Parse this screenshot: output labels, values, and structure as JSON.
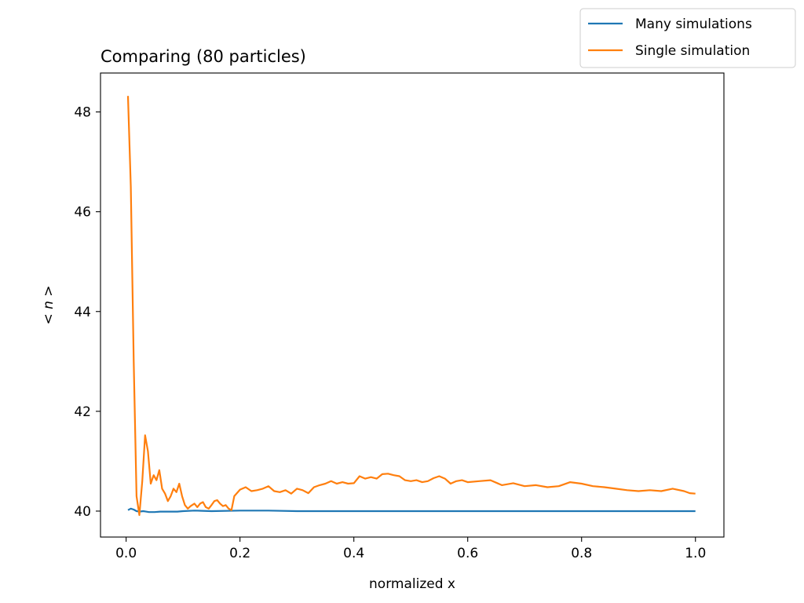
{
  "chart_data": {
    "type": "line",
    "title": "Comparing (80 particles)",
    "xlabel": "normalized x",
    "ylabel": "< n >",
    "xlim": [
      -0.045,
      1.05
    ],
    "ylim": [
      39.48,
      48.78
    ],
    "xticks": [
      0.0,
      0.2,
      0.4,
      0.6,
      0.8,
      1.0
    ],
    "xtick_labels": [
      "0.0",
      "0.2",
      "0.4",
      "0.6",
      "0.8",
      "1.0"
    ],
    "yticks": [
      40,
      42,
      44,
      46,
      48
    ],
    "ytick_labels": [
      "40",
      "42",
      "44",
      "46",
      "48"
    ],
    "grid": false,
    "legend_position": "top-right, outside axes",
    "series": [
      {
        "name": "Many simulations",
        "color": "#1f77b4",
        "points": [
          [
            0.0033,
            40.02
          ],
          [
            0.0083,
            40.05
          ],
          [
            0.0133,
            40.03
          ],
          [
            0.0183,
            40.0
          ],
          [
            0.0233,
            39.99
          ],
          [
            0.03,
            40.0
          ],
          [
            0.035,
            39.99
          ],
          [
            0.04,
            39.98
          ],
          [
            0.05,
            39.98
          ],
          [
            0.06,
            39.99
          ],
          [
            0.07,
            39.99
          ],
          [
            0.08,
            39.99
          ],
          [
            0.09,
            39.99
          ],
          [
            0.1,
            40.0
          ],
          [
            0.12,
            40.01
          ],
          [
            0.15,
            40.0
          ],
          [
            0.2,
            40.01
          ],
          [
            0.25,
            40.01
          ],
          [
            0.3,
            40.0
          ],
          [
            0.4,
            40.0
          ],
          [
            0.5,
            40.0
          ],
          [
            0.6,
            40.0
          ],
          [
            0.7,
            40.0
          ],
          [
            0.8,
            40.0
          ],
          [
            0.9,
            40.0
          ],
          [
            1.0,
            40.0
          ]
        ]
      },
      {
        "name": "Single simulation",
        "color": "#ff7f0e",
        "points": [
          [
            0.0033,
            48.32
          ],
          [
            0.0083,
            46.5
          ],
          [
            0.0133,
            43.0
          ],
          [
            0.0183,
            40.3
          ],
          [
            0.0233,
            39.92
          ],
          [
            0.0283,
            40.6
          ],
          [
            0.0333,
            41.52
          ],
          [
            0.0383,
            41.2
          ],
          [
            0.0433,
            40.55
          ],
          [
            0.0483,
            40.72
          ],
          [
            0.0533,
            40.62
          ],
          [
            0.0583,
            40.82
          ],
          [
            0.0633,
            40.45
          ],
          [
            0.0683,
            40.35
          ],
          [
            0.0733,
            40.2
          ],
          [
            0.0783,
            40.3
          ],
          [
            0.0833,
            40.45
          ],
          [
            0.0883,
            40.38
          ],
          [
            0.0933,
            40.55
          ],
          [
            0.0983,
            40.3
          ],
          [
            0.1033,
            40.12
          ],
          [
            0.1083,
            40.05
          ],
          [
            0.1133,
            40.1
          ],
          [
            0.12,
            40.15
          ],
          [
            0.125,
            40.08
          ],
          [
            0.13,
            40.15
          ],
          [
            0.135,
            40.18
          ],
          [
            0.14,
            40.08
          ],
          [
            0.145,
            40.05
          ],
          [
            0.15,
            40.12
          ],
          [
            0.155,
            40.2
          ],
          [
            0.16,
            40.22
          ],
          [
            0.165,
            40.15
          ],
          [
            0.17,
            40.1
          ],
          [
            0.175,
            40.12
          ],
          [
            0.18,
            40.05
          ],
          [
            0.185,
            40.02
          ],
          [
            0.19,
            40.3
          ],
          [
            0.2,
            40.43
          ],
          [
            0.21,
            40.48
          ],
          [
            0.22,
            40.4
          ],
          [
            0.23,
            40.42
          ],
          [
            0.24,
            40.45
          ],
          [
            0.25,
            40.5
          ],
          [
            0.26,
            40.4
          ],
          [
            0.27,
            40.38
          ],
          [
            0.28,
            40.42
          ],
          [
            0.29,
            40.35
          ],
          [
            0.3,
            40.45
          ],
          [
            0.31,
            40.42
          ],
          [
            0.32,
            40.36
          ],
          [
            0.33,
            40.48
          ],
          [
            0.34,
            40.52
          ],
          [
            0.35,
            40.55
          ],
          [
            0.36,
            40.6
          ],
          [
            0.37,
            40.55
          ],
          [
            0.38,
            40.58
          ],
          [
            0.39,
            40.55
          ],
          [
            0.4,
            40.56
          ],
          [
            0.41,
            40.7
          ],
          [
            0.42,
            40.65
          ],
          [
            0.43,
            40.68
          ],
          [
            0.44,
            40.65
          ],
          [
            0.45,
            40.74
          ],
          [
            0.46,
            40.75
          ],
          [
            0.47,
            40.72
          ],
          [
            0.48,
            40.7
          ],
          [
            0.49,
            40.62
          ],
          [
            0.5,
            40.6
          ],
          [
            0.51,
            40.62
          ],
          [
            0.52,
            40.58
          ],
          [
            0.53,
            40.6
          ],
          [
            0.54,
            40.66
          ],
          [
            0.55,
            40.7
          ],
          [
            0.56,
            40.65
          ],
          [
            0.57,
            40.55
          ],
          [
            0.58,
            40.6
          ],
          [
            0.59,
            40.62
          ],
          [
            0.6,
            40.58
          ],
          [
            0.62,
            40.6
          ],
          [
            0.64,
            40.62
          ],
          [
            0.66,
            40.52
          ],
          [
            0.68,
            40.56
          ],
          [
            0.7,
            40.5
          ],
          [
            0.72,
            40.52
          ],
          [
            0.74,
            40.48
          ],
          [
            0.76,
            40.5
          ],
          [
            0.78,
            40.58
          ],
          [
            0.8,
            40.55
          ],
          [
            0.82,
            40.5
          ],
          [
            0.84,
            40.48
          ],
          [
            0.86,
            40.45
          ],
          [
            0.88,
            40.42
          ],
          [
            0.9,
            40.4
          ],
          [
            0.92,
            40.42
          ],
          [
            0.94,
            40.4
          ],
          [
            0.96,
            40.45
          ],
          [
            0.98,
            40.4
          ],
          [
            0.99,
            40.36
          ],
          [
            1.0,
            40.35
          ]
        ]
      }
    ]
  }
}
